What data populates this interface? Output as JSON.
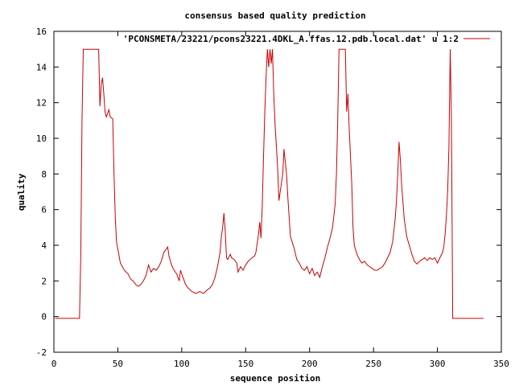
{
  "chart_data": {
    "type": "line",
    "title": "consensus based quality prediction",
    "xlabel": "sequence position",
    "ylabel": "quality",
    "xlim": [
      0,
      350
    ],
    "ylim": [
      -2,
      16
    ],
    "x_ticks": [
      0,
      50,
      100,
      150,
      200,
      250,
      300,
      350
    ],
    "y_ticks": [
      -2,
      0,
      2,
      4,
      6,
      8,
      10,
      12,
      14,
      16
    ],
    "grid": false,
    "legend_position": "top-right",
    "colors": {
      "series": "#cc0000",
      "axes": "#000000"
    },
    "series": [
      {
        "name": "'PCONSMETA/23221/pcons23221.4DKL_A.ffas.12.pdb.local.dat' u 1:2",
        "points": [
          [
            1,
            -0.1
          ],
          [
            20,
            -0.1
          ],
          [
            21,
            3.5
          ],
          [
            22,
            11
          ],
          [
            23,
            15
          ],
          [
            35,
            15
          ],
          [
            36,
            11.8
          ],
          [
            37,
            13
          ],
          [
            38,
            13.4
          ],
          [
            39,
            12.5
          ],
          [
            40,
            11.5
          ],
          [
            41,
            11.2
          ],
          [
            43,
            11.6
          ],
          [
            44,
            11.2
          ],
          [
            46,
            11.1
          ],
          [
            47,
            8
          ],
          [
            48,
            5.5
          ],
          [
            49,
            4.2
          ],
          [
            50,
            3.8
          ],
          [
            52,
            3
          ],
          [
            55,
            2.6
          ],
          [
            58,
            2.4
          ],
          [
            60,
            2.1
          ],
          [
            62,
            2.0
          ],
          [
            64,
            1.8
          ],
          [
            66,
            1.7
          ],
          [
            68,
            1.8
          ],
          [
            70,
            2.0
          ],
          [
            72,
            2.3
          ],
          [
            74,
            2.9
          ],
          [
            76,
            2.5
          ],
          [
            78,
            2.7
          ],
          [
            80,
            2.6
          ],
          [
            82,
            2.8
          ],
          [
            84,
            3.1
          ],
          [
            86,
            3.6
          ],
          [
            88,
            3.8
          ],
          [
            89,
            3.9
          ],
          [
            90,
            3.4
          ],
          [
            92,
            2.9
          ],
          [
            94,
            2.6
          ],
          [
            96,
            2.4
          ],
          [
            98,
            2.0
          ],
          [
            99,
            2.6
          ],
          [
            101,
            2.2
          ],
          [
            103,
            1.8
          ],
          [
            105,
            1.6
          ],
          [
            108,
            1.4
          ],
          [
            111,
            1.3
          ],
          [
            114,
            1.4
          ],
          [
            117,
            1.3
          ],
          [
            120,
            1.5
          ],
          [
            122,
            1.6
          ],
          [
            124,
            1.8
          ],
          [
            126,
            2.2
          ],
          [
            128,
            2.8
          ],
          [
            130,
            3.6
          ],
          [
            131,
            4.5
          ],
          [
            132,
            5.0
          ],
          [
            133,
            5.8
          ],
          [
            134,
            4.8
          ],
          [
            135,
            3.3
          ],
          [
            136,
            3.2
          ],
          [
            138,
            3.5
          ],
          [
            139,
            3.3
          ],
          [
            141,
            3.2
          ],
          [
            143,
            3.0
          ],
          [
            144,
            2.5
          ],
          [
            146,
            2.8
          ],
          [
            148,
            2.6
          ],
          [
            150,
            2.9
          ],
          [
            152,
            3.1
          ],
          [
            155,
            3.3
          ],
          [
            157,
            3.4
          ],
          [
            158,
            3.6
          ],
          [
            159,
            4.1
          ],
          [
            160,
            4.6
          ],
          [
            161,
            5.3
          ],
          [
            162,
            4.4
          ],
          [
            163,
            6.2
          ],
          [
            164,
            9.0
          ],
          [
            165,
            11.5
          ],
          [
            166,
            13.5
          ],
          [
            167,
            15
          ],
          [
            168,
            14
          ],
          [
            169,
            15
          ],
          [
            170,
            14.2
          ],
          [
            171,
            15
          ],
          [
            172,
            12.5
          ],
          [
            173,
            10.8
          ],
          [
            175,
            8.4
          ],
          [
            176,
            6.5
          ],
          [
            177,
            7.0
          ],
          [
            178,
            7.5
          ],
          [
            179,
            8.0
          ],
          [
            180,
            9.4
          ],
          [
            181,
            8.7
          ],
          [
            182,
            8.0
          ],
          [
            183,
            6.7
          ],
          [
            185,
            4.5
          ],
          [
            188,
            3.8
          ],
          [
            190,
            3.2
          ],
          [
            192,
            3.0
          ],
          [
            194,
            2.7
          ],
          [
            196,
            2.6
          ],
          [
            198,
            2.8
          ],
          [
            200,
            2.4
          ],
          [
            202,
            2.7
          ],
          [
            204,
            2.3
          ],
          [
            206,
            2.5
          ],
          [
            208,
            2.2
          ],
          [
            210,
            2.8
          ],
          [
            212,
            3.3
          ],
          [
            214,
            3.9
          ],
          [
            216,
            4.4
          ],
          [
            218,
            5.0
          ],
          [
            220,
            6.3
          ],
          [
            221,
            8.0
          ],
          [
            222,
            11
          ],
          [
            223,
            15
          ],
          [
            228,
            15
          ],
          [
            229,
            11.5
          ],
          [
            230,
            12.5
          ],
          [
            231,
            10.5
          ],
          [
            233,
            7.5
          ],
          [
            234,
            5.0
          ],
          [
            235,
            4.0
          ],
          [
            237,
            3.5
          ],
          [
            239,
            3.2
          ],
          [
            241,
            3.0
          ],
          [
            243,
            3.1
          ],
          [
            245,
            2.9
          ],
          [
            247,
            2.8
          ],
          [
            249,
            2.7
          ],
          [
            251,
            2.6
          ],
          [
            253,
            2.6
          ],
          [
            255,
            2.7
          ],
          [
            257,
            2.8
          ],
          [
            259,
            3.0
          ],
          [
            261,
            3.3
          ],
          [
            263,
            3.6
          ],
          [
            265,
            4.2
          ],
          [
            267,
            5.5
          ],
          [
            268,
            6.5
          ],
          [
            269,
            8.0
          ],
          [
            270,
            9.8
          ],
          [
            271,
            8.8
          ],
          [
            272,
            7.4
          ],
          [
            274,
            5.5
          ],
          [
            276,
            4.5
          ],
          [
            278,
            4.0
          ],
          [
            280,
            3.5
          ],
          [
            282,
            3.1
          ],
          [
            284,
            2.95
          ],
          [
            286,
            3.1
          ],
          [
            288,
            3.2
          ],
          [
            290,
            3.3
          ],
          [
            292,
            3.15
          ],
          [
            294,
            3.3
          ],
          [
            296,
            3.2
          ],
          [
            298,
            3.3
          ],
          [
            300,
            3.0
          ],
          [
            302,
            3.3
          ],
          [
            304,
            3.6
          ],
          [
            305,
            3.9
          ],
          [
            306,
            4.6
          ],
          [
            307,
            5.6
          ],
          [
            308,
            7.0
          ],
          [
            309,
            9.5
          ],
          [
            310,
            15
          ],
          [
            311,
            11
          ],
          [
            312,
            -0.1
          ],
          [
            336,
            -0.1
          ]
        ]
      }
    ]
  }
}
